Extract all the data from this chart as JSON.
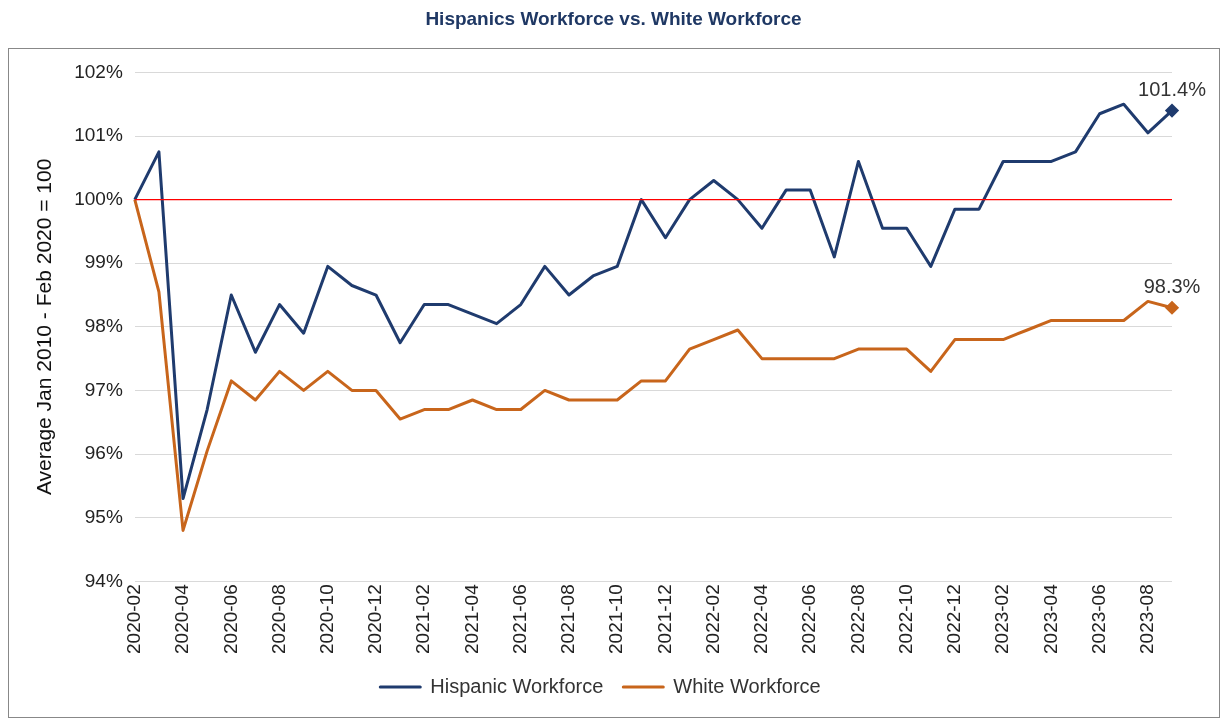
{
  "chart_data": {
    "type": "line",
    "title": "Hispanics Workforce vs. White Workforce",
    "ylabel": "Average Jan 2010 - Feb 2020 = 100",
    "categories": [
      "2020-02",
      null,
      "2020-04",
      null,
      "2020-06",
      null,
      "2020-08",
      null,
      "2020-10",
      null,
      "2020-12",
      null,
      "2021-02",
      null,
      "2021-04",
      null,
      "2021-06",
      null,
      "2021-08",
      null,
      "2021-10",
      null,
      "2021-12",
      null,
      "2022-02",
      null,
      "2022-04",
      null,
      "2022-06",
      null,
      "2022-08",
      null,
      "2022-10",
      null,
      "2022-12",
      null,
      "2023-02",
      null,
      "2023-04",
      null,
      "2023-06",
      null,
      "2023-08",
      null
    ],
    "series": [
      {
        "name": "Hispanic Workforce",
        "color": "#1f3b6e",
        "values": [
          100,
          100.75,
          95.3,
          96.7,
          98.5,
          97.6,
          98.35,
          97.9,
          98.95,
          98.65,
          98.5,
          97.75,
          98.35,
          98.35,
          98.2,
          98.05,
          98.35,
          98.95,
          98.5,
          98.8,
          98.95,
          100,
          99.4,
          100,
          100.3,
          100,
          99.55,
          100.15,
          100.15,
          99.1,
          100.6,
          99.55,
          99.55,
          98.95,
          99.85,
          99.85,
          100.6,
          100.6,
          100.6,
          100.75,
          101.35,
          101.5,
          101.05,
          101.4
        ],
        "value_labels": [
          null,
          null,
          null,
          null,
          null,
          null,
          null,
          null,
          null,
          null,
          null,
          null,
          null,
          null,
          null,
          null,
          null,
          null,
          null,
          null,
          null,
          null,
          null,
          null,
          null,
          null,
          null,
          null,
          null,
          null,
          null,
          null,
          null,
          null,
          null,
          null,
          null,
          null,
          null,
          null,
          null,
          null,
          null,
          "101.4%"
        ]
      },
      {
        "name": "White Workforce",
        "color": "#c8651b",
        "values": [
          100,
          98.55,
          94.8,
          96.05,
          97.15,
          96.85,
          97.3,
          97.0,
          97.3,
          97.0,
          97.0,
          96.55,
          96.7,
          96.7,
          96.85,
          96.7,
          96.7,
          97.0,
          96.85,
          96.85,
          96.85,
          97.15,
          97.15,
          97.65,
          97.8,
          97.95,
          97.5,
          97.5,
          97.5,
          97.5,
          97.65,
          97.65,
          97.65,
          97.3,
          97.8,
          97.8,
          97.8,
          97.95,
          98.1,
          98.1,
          98.1,
          98.1,
          98.4,
          98.3
        ],
        "value_labels": [
          null,
          null,
          null,
          null,
          null,
          null,
          null,
          null,
          null,
          null,
          null,
          null,
          null,
          null,
          null,
          null,
          null,
          null,
          null,
          null,
          null,
          null,
          null,
          null,
          null,
          null,
          null,
          null,
          null,
          null,
          null,
          null,
          null,
          null,
          null,
          null,
          null,
          null,
          null,
          null,
          null,
          null,
          null,
          "98.3%"
        ]
      }
    ],
    "ylim": [
      94,
      102
    ],
    "yticks": [
      {
        "value": 94,
        "label": "94%"
      },
      {
        "value": 95,
        "label": "95%"
      },
      {
        "value": 96,
        "label": "96%"
      },
      {
        "value": 97,
        "label": "97%"
      },
      {
        "value": 98,
        "label": "98%"
      },
      {
        "value": 99,
        "label": "99%"
      },
      {
        "value": 100,
        "label": "100%"
      },
      {
        "value": 101,
        "label": "101%"
      },
      {
        "value": 102,
        "label": "102%"
      }
    ],
    "ref_lines": [
      {
        "axis": "y",
        "value": 100,
        "color": "#ff0000"
      }
    ],
    "grid": "y",
    "legend": "bottom",
    "line_style": "solid"
  }
}
